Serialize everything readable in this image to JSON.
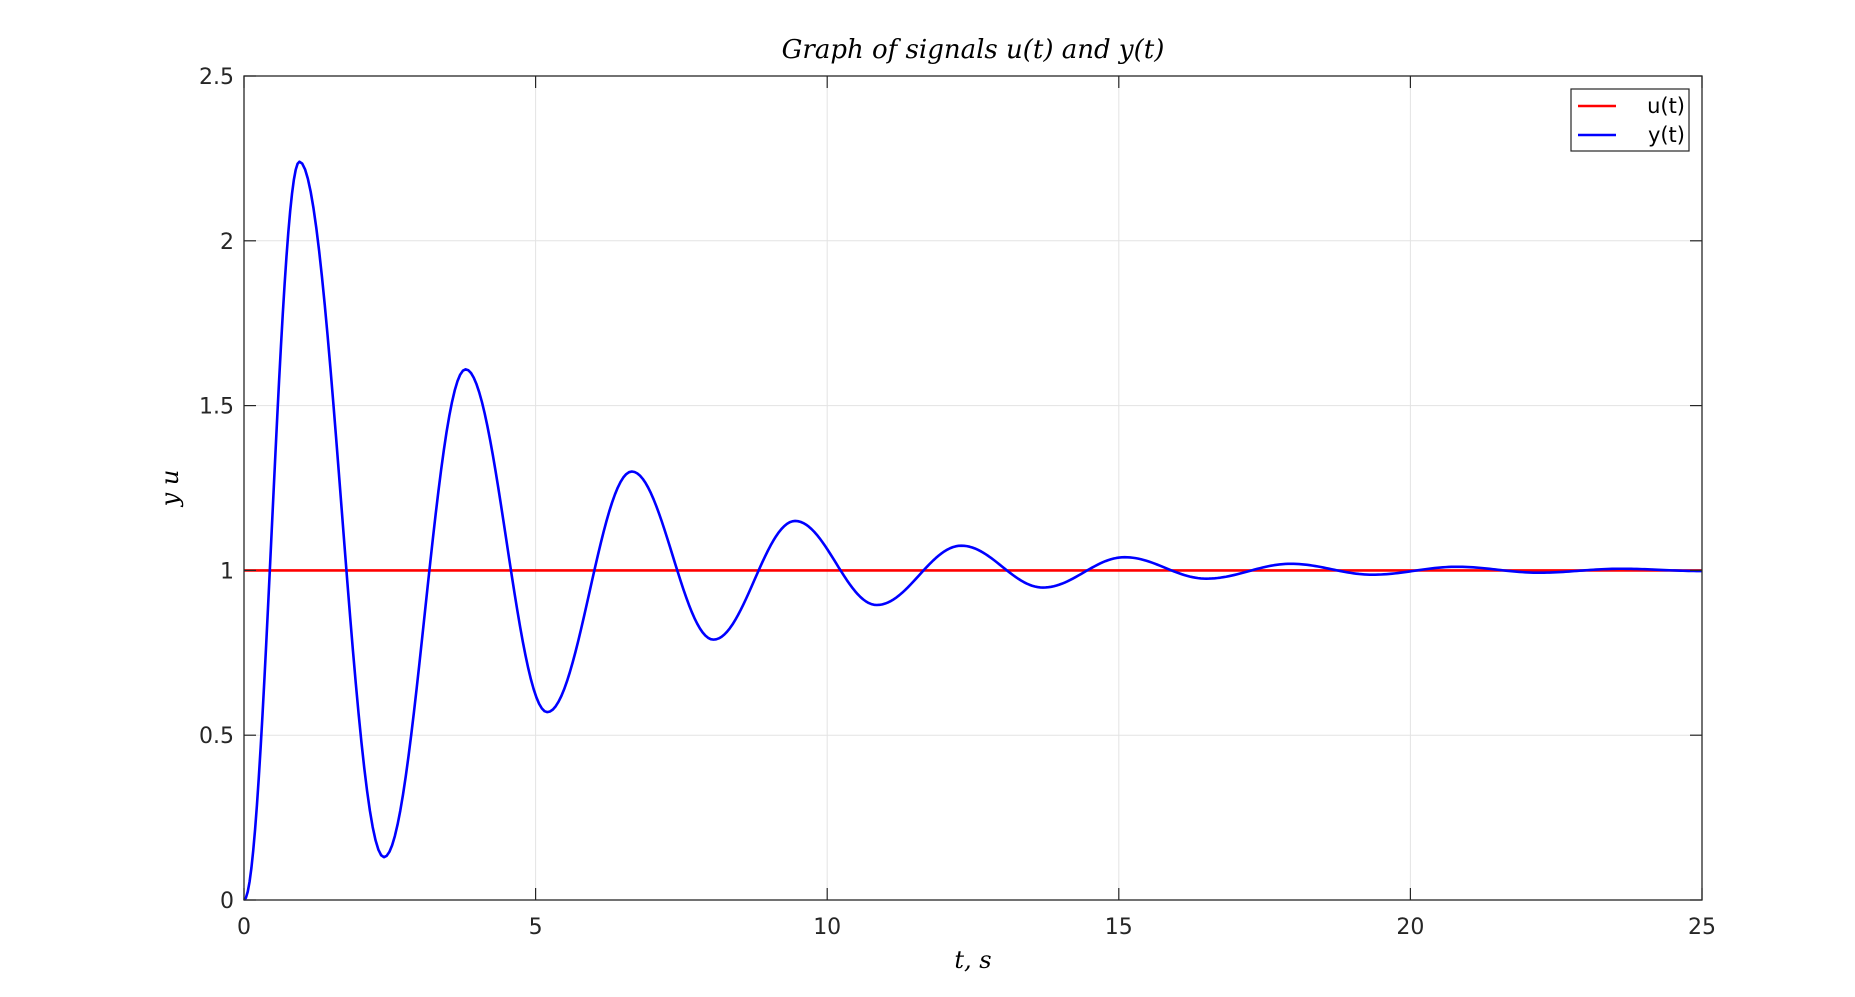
{
  "chart_data": {
    "type": "line",
    "title": "Graph of signals u(t) and y(t)",
    "xlabel": "t, s",
    "ylabel": "y u",
    "xlim": [
      0,
      25
    ],
    "ylim": [
      0,
      2.5
    ],
    "xticks": [
      0,
      5,
      10,
      15,
      20,
      25
    ],
    "yticks": [
      0,
      0.5,
      1,
      1.5,
      2,
      2.5
    ],
    "xtick_labels": [
      "0",
      "5",
      "10",
      "15",
      "20",
      "25"
    ],
    "ytick_labels": [
      "0",
      "0.5",
      "1",
      "1.5",
      "2",
      "2.5"
    ],
    "grid": true,
    "legend_position": "top-right",
    "series": [
      {
        "name": "u(t)",
        "color": "#ff0000",
        "x": [
          0,
          25
        ],
        "y": [
          1,
          1
        ]
      },
      {
        "name": "y(t)",
        "color": "#0000ff",
        "x": [
          0,
          0.95,
          2.4,
          3.8,
          5.2,
          6.65,
          8.05,
          9.45,
          10.85,
          12.3,
          13.7,
          15.1,
          16.5,
          17.95,
          19.35,
          20.8,
          22.2,
          23.6,
          25
        ],
        "y": [
          0,
          2.24,
          0.13,
          1.61,
          0.57,
          1.3,
          0.79,
          1.15,
          0.895,
          1.075,
          0.948,
          1.04,
          0.975,
          1.02,
          0.987,
          1.011,
          0.993,
          1.005,
          0.998
        ]
      }
    ]
  }
}
